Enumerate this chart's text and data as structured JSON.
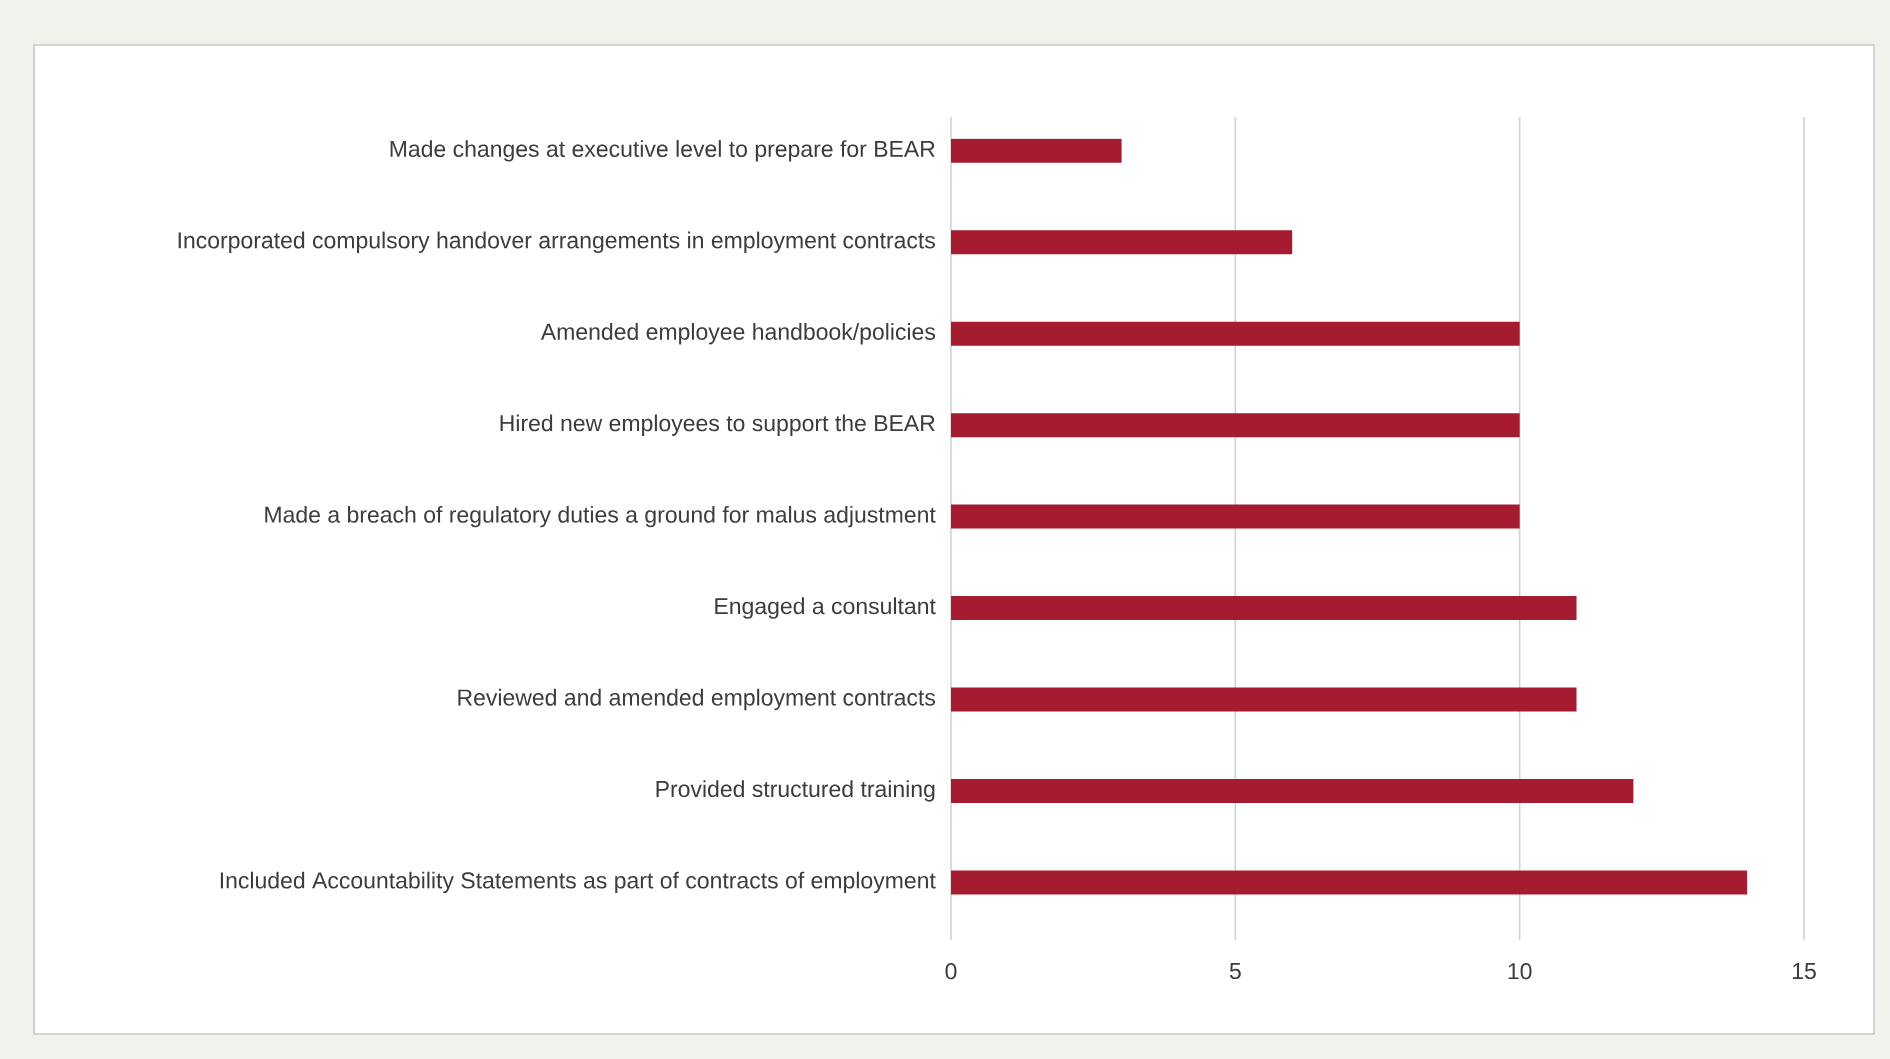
{
  "chart_data": {
    "type": "bar",
    "orientation": "horizontal",
    "categories": [
      "Made changes at executive level to prepare for BEAR",
      "Incorporated compulsory handover arrangements in employment contracts",
      "Amended employee handbook/policies",
      "Hired new employees to support the BEAR",
      "Made a breach of regulatory duties a ground for malus adjustment",
      "Engaged a consultant",
      "Reviewed and amended employment contracts",
      "Provided structured training",
      "Included Accountability Statements as part of contracts of employment"
    ],
    "values": [
      3,
      6,
      10,
      10,
      10,
      11,
      11,
      12,
      14
    ],
    "color": "#a51c30",
    "xlim": [
      0,
      15
    ],
    "xticks": [
      0,
      5,
      10,
      15
    ],
    "grid": "x"
  }
}
